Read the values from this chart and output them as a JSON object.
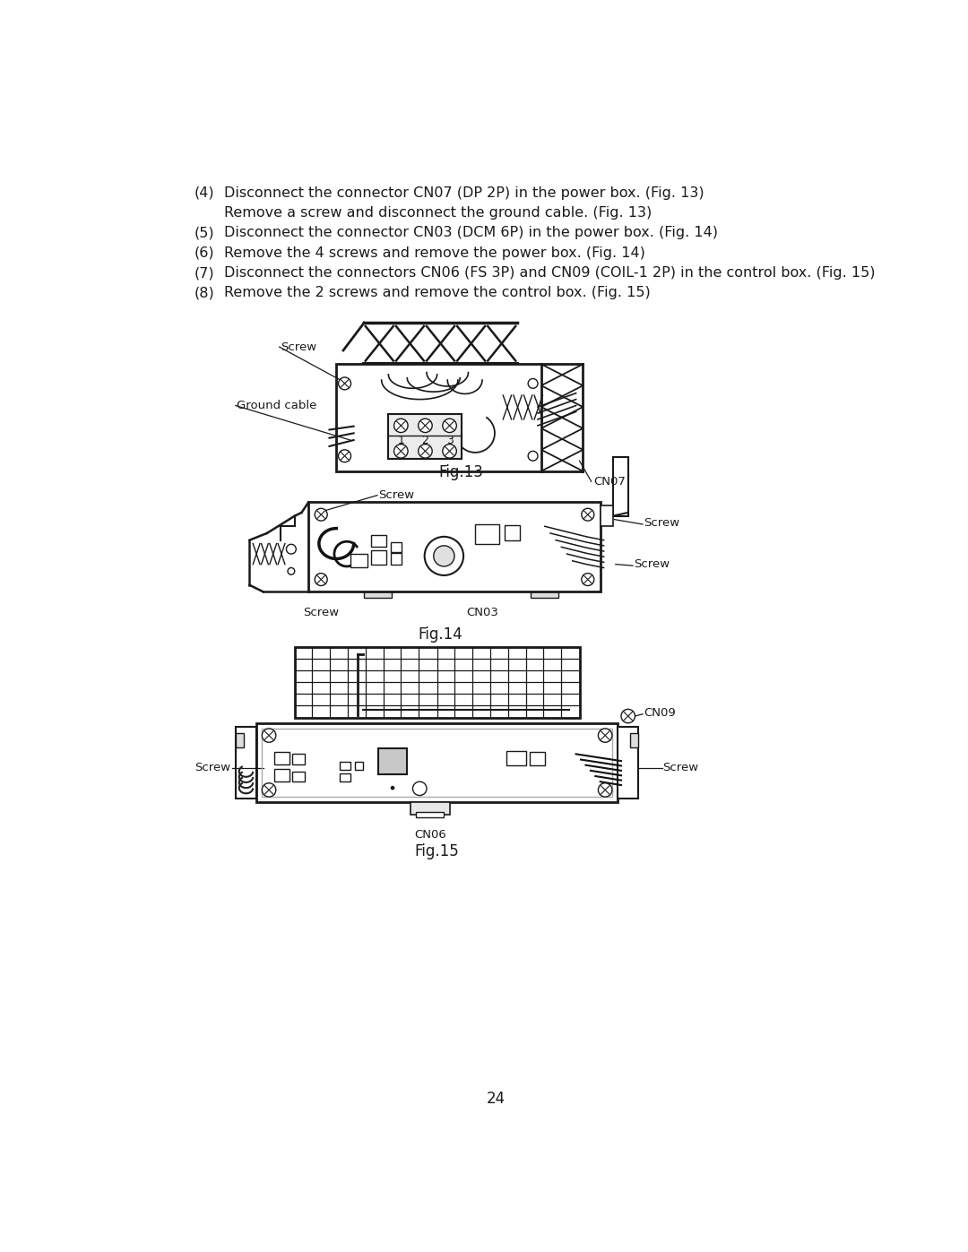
{
  "background_color": "#ffffff",
  "page_number": "24",
  "text_color": "#1a1a1a",
  "line_color": "#1a1a1a",
  "font_family": "DejaVu Sans",
  "font_size_text": 11.5,
  "font_size_label": 12,
  "font_size_annotation": 9.5,
  "font_size_page": 12,
  "instructions": [
    [
      "(4)",
      "Disconnect the connector CN07 (DP 2P) in the power box. (Fig. 13)"
    ],
    [
      "",
      "Remove a screw and disconnect the ground cable. (Fig. 13)"
    ],
    [
      "(5)",
      "Disconnect the connector CN03 (DCM 6P) in the power box. (Fig. 14)"
    ],
    [
      "(6)",
      "Remove the 4 screws and remove the power box. (Fig. 14)"
    ],
    [
      "(7)",
      "Disconnect the connectors CN06 (FS 3P) and CN09 (COIL-1 2P) in the control box. (Fig. 15)"
    ],
    [
      "(8)",
      "Remove the 2 screws and remove the control box. (Fig. 15)"
    ]
  ],
  "fig13_label": "Fig.13",
  "fig14_label": "Fig.14",
  "fig15_label": "Fig.15"
}
